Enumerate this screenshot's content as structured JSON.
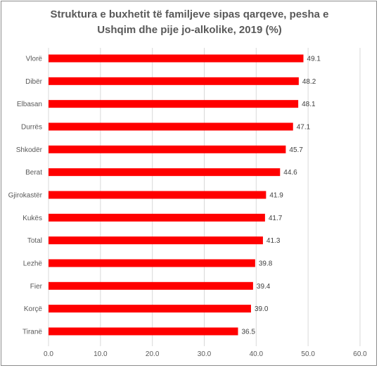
{
  "chart_data": {
    "type": "bar",
    "orientation": "horizontal",
    "title_lines": [
      "Struktura e buxhetit të familjeve sipas qarqeve, pesha e",
      "Ushqim dhe pije jo-alkolike, 2019 (%)"
    ],
    "categories": [
      "Vlorë",
      "Dibër",
      "Elbasan",
      "Durrës",
      "Shkodër",
      "Berat",
      "Gjirokastër",
      "Kukës",
      "Total",
      "Lezhë",
      "Fier",
      "Korçë",
      "Tiranë"
    ],
    "values": [
      49.1,
      48.2,
      48.1,
      47.1,
      45.7,
      44.6,
      41.9,
      41.7,
      41.3,
      39.8,
      39.4,
      39.0,
      36.5
    ],
    "data_labels": [
      "49.1",
      "48.2",
      "48.1",
      "47.1",
      "45.7",
      "44.6",
      "41.9",
      "41.7",
      "41.3",
      "39.8",
      "39.4",
      "39.0",
      "36.5"
    ],
    "xlim": [
      0,
      60
    ],
    "xticks": [
      0,
      10,
      20,
      30,
      40,
      50,
      60
    ],
    "xtick_labels": [
      "0.0",
      "10.0",
      "20.0",
      "30.0",
      "40.0",
      "50.0",
      "60.0"
    ],
    "grid": "vertical",
    "legend": "none",
    "bar_color": "#ff0000",
    "grid_color": "#d9d9d9"
  }
}
